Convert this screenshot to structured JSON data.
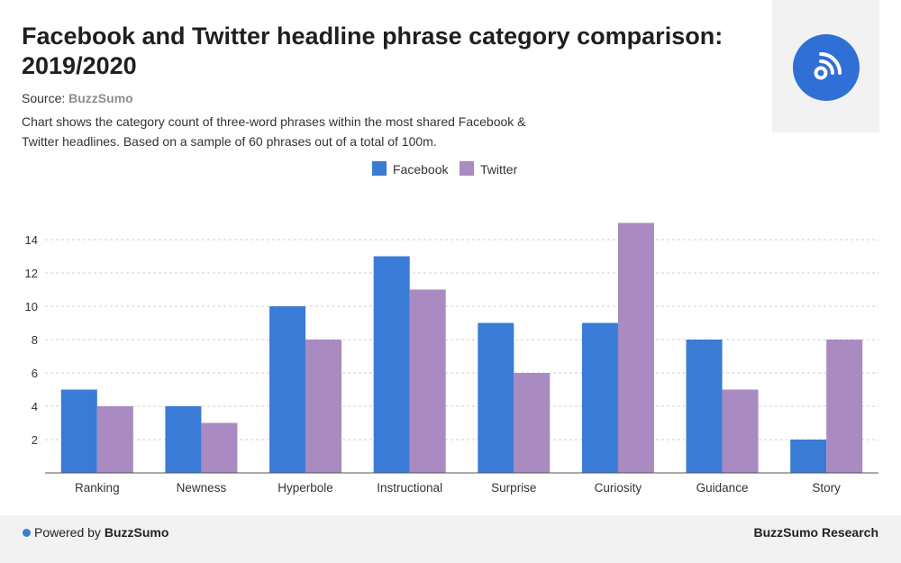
{
  "header": {
    "title": "Facebook and Twitter headline phrase category comparison: 2019/2020",
    "source_label": "Source:",
    "source_name": "BuzzSumo",
    "subtitle": "Chart shows the category count of three-word phrases within the most shared Facebook & Twitter headlines. Based on a sample of 60 phrases out of a total of 100m."
  },
  "logo": {
    "icon": "rss-feed-icon",
    "color": "#2f6fd6"
  },
  "footer": {
    "powered_prefix": "Powered by",
    "powered_brand": "BuzzSumo",
    "research": "BuzzSumo Research"
  },
  "chart_data": {
    "type": "bar",
    "categories": [
      "Ranking",
      "Newness",
      "Hyperbole",
      "Instructional",
      "Surprise",
      "Curiosity",
      "Guidance",
      "Story"
    ],
    "series": [
      {
        "name": "Facebook",
        "color": "#3a7bd5",
        "values": [
          5,
          4,
          10,
          13,
          9,
          9,
          8,
          2
        ]
      },
      {
        "name": "Twitter",
        "color": "#a98ac1",
        "values": [
          4,
          3,
          8,
          11,
          6,
          15,
          5,
          8
        ]
      }
    ],
    "yticks": [
      2,
      4,
      6,
      8,
      10,
      12,
      14
    ],
    "ylim": [
      0,
      15
    ],
    "grid": true,
    "legend_position": "top-center"
  }
}
